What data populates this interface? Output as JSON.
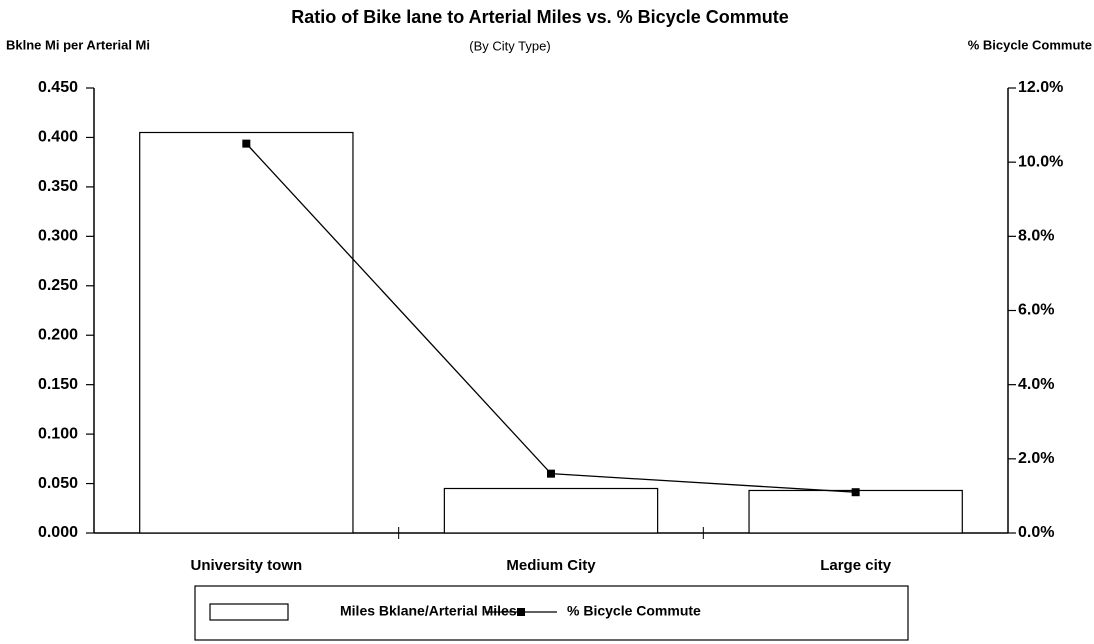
{
  "chart_data": {
    "type": "bar_line",
    "title": "Ratio of Bike lane to Arterial Miles vs. % Bicycle Commute",
    "subtitle": "(By City Type)",
    "y_label": "Bklne Mi per Arterial Mi",
    "y2_label": "% Bicycle Commute",
    "categories": [
      "University town",
      "Medium City",
      "Large city"
    ],
    "series": [
      {
        "name": "Miles Bklane/Arterial Miles",
        "type": "bar",
        "axis": "y",
        "color": "#ffffff",
        "values": [
          0.405,
          0.045,
          0.043
        ]
      },
      {
        "name": "% Bicycle Commute",
        "type": "line",
        "axis": "y2",
        "color": "#000000",
        "values": [
          10.5,
          1.6,
          1.1
        ]
      }
    ],
    "ylim": [
      0,
      0.45
    ],
    "yticks": [
      {
        "value": 0,
        "label": "0.000"
      },
      {
        "value": 0.05,
        "label": "0.050"
      },
      {
        "value": 0.1,
        "label": "0.100"
      },
      {
        "value": 0.15,
        "label": "0.150"
      },
      {
        "value": 0.2,
        "label": "0.200"
      },
      {
        "value": 0.25,
        "label": "0.250"
      },
      {
        "value": 0.3,
        "label": "0.300"
      },
      {
        "value": 0.35,
        "label": "0.350"
      },
      {
        "value": 0.4,
        "label": "0.400"
      },
      {
        "value": 0.45,
        "label": "0.450"
      }
    ],
    "y2lim": [
      0,
      12
    ],
    "y2ticks": [
      {
        "value": 0,
        "label": "0.0%"
      },
      {
        "value": 2,
        "label": "2.0%"
      },
      {
        "value": 4,
        "label": "4.0%"
      },
      {
        "value": 6,
        "label": "6.0%"
      },
      {
        "value": 8,
        "label": "8.0%"
      },
      {
        "value": 10,
        "label": "10.0%"
      },
      {
        "value": 12,
        "label": "12.0%"
      }
    ],
    "legend": "bottom",
    "grid": false
  }
}
